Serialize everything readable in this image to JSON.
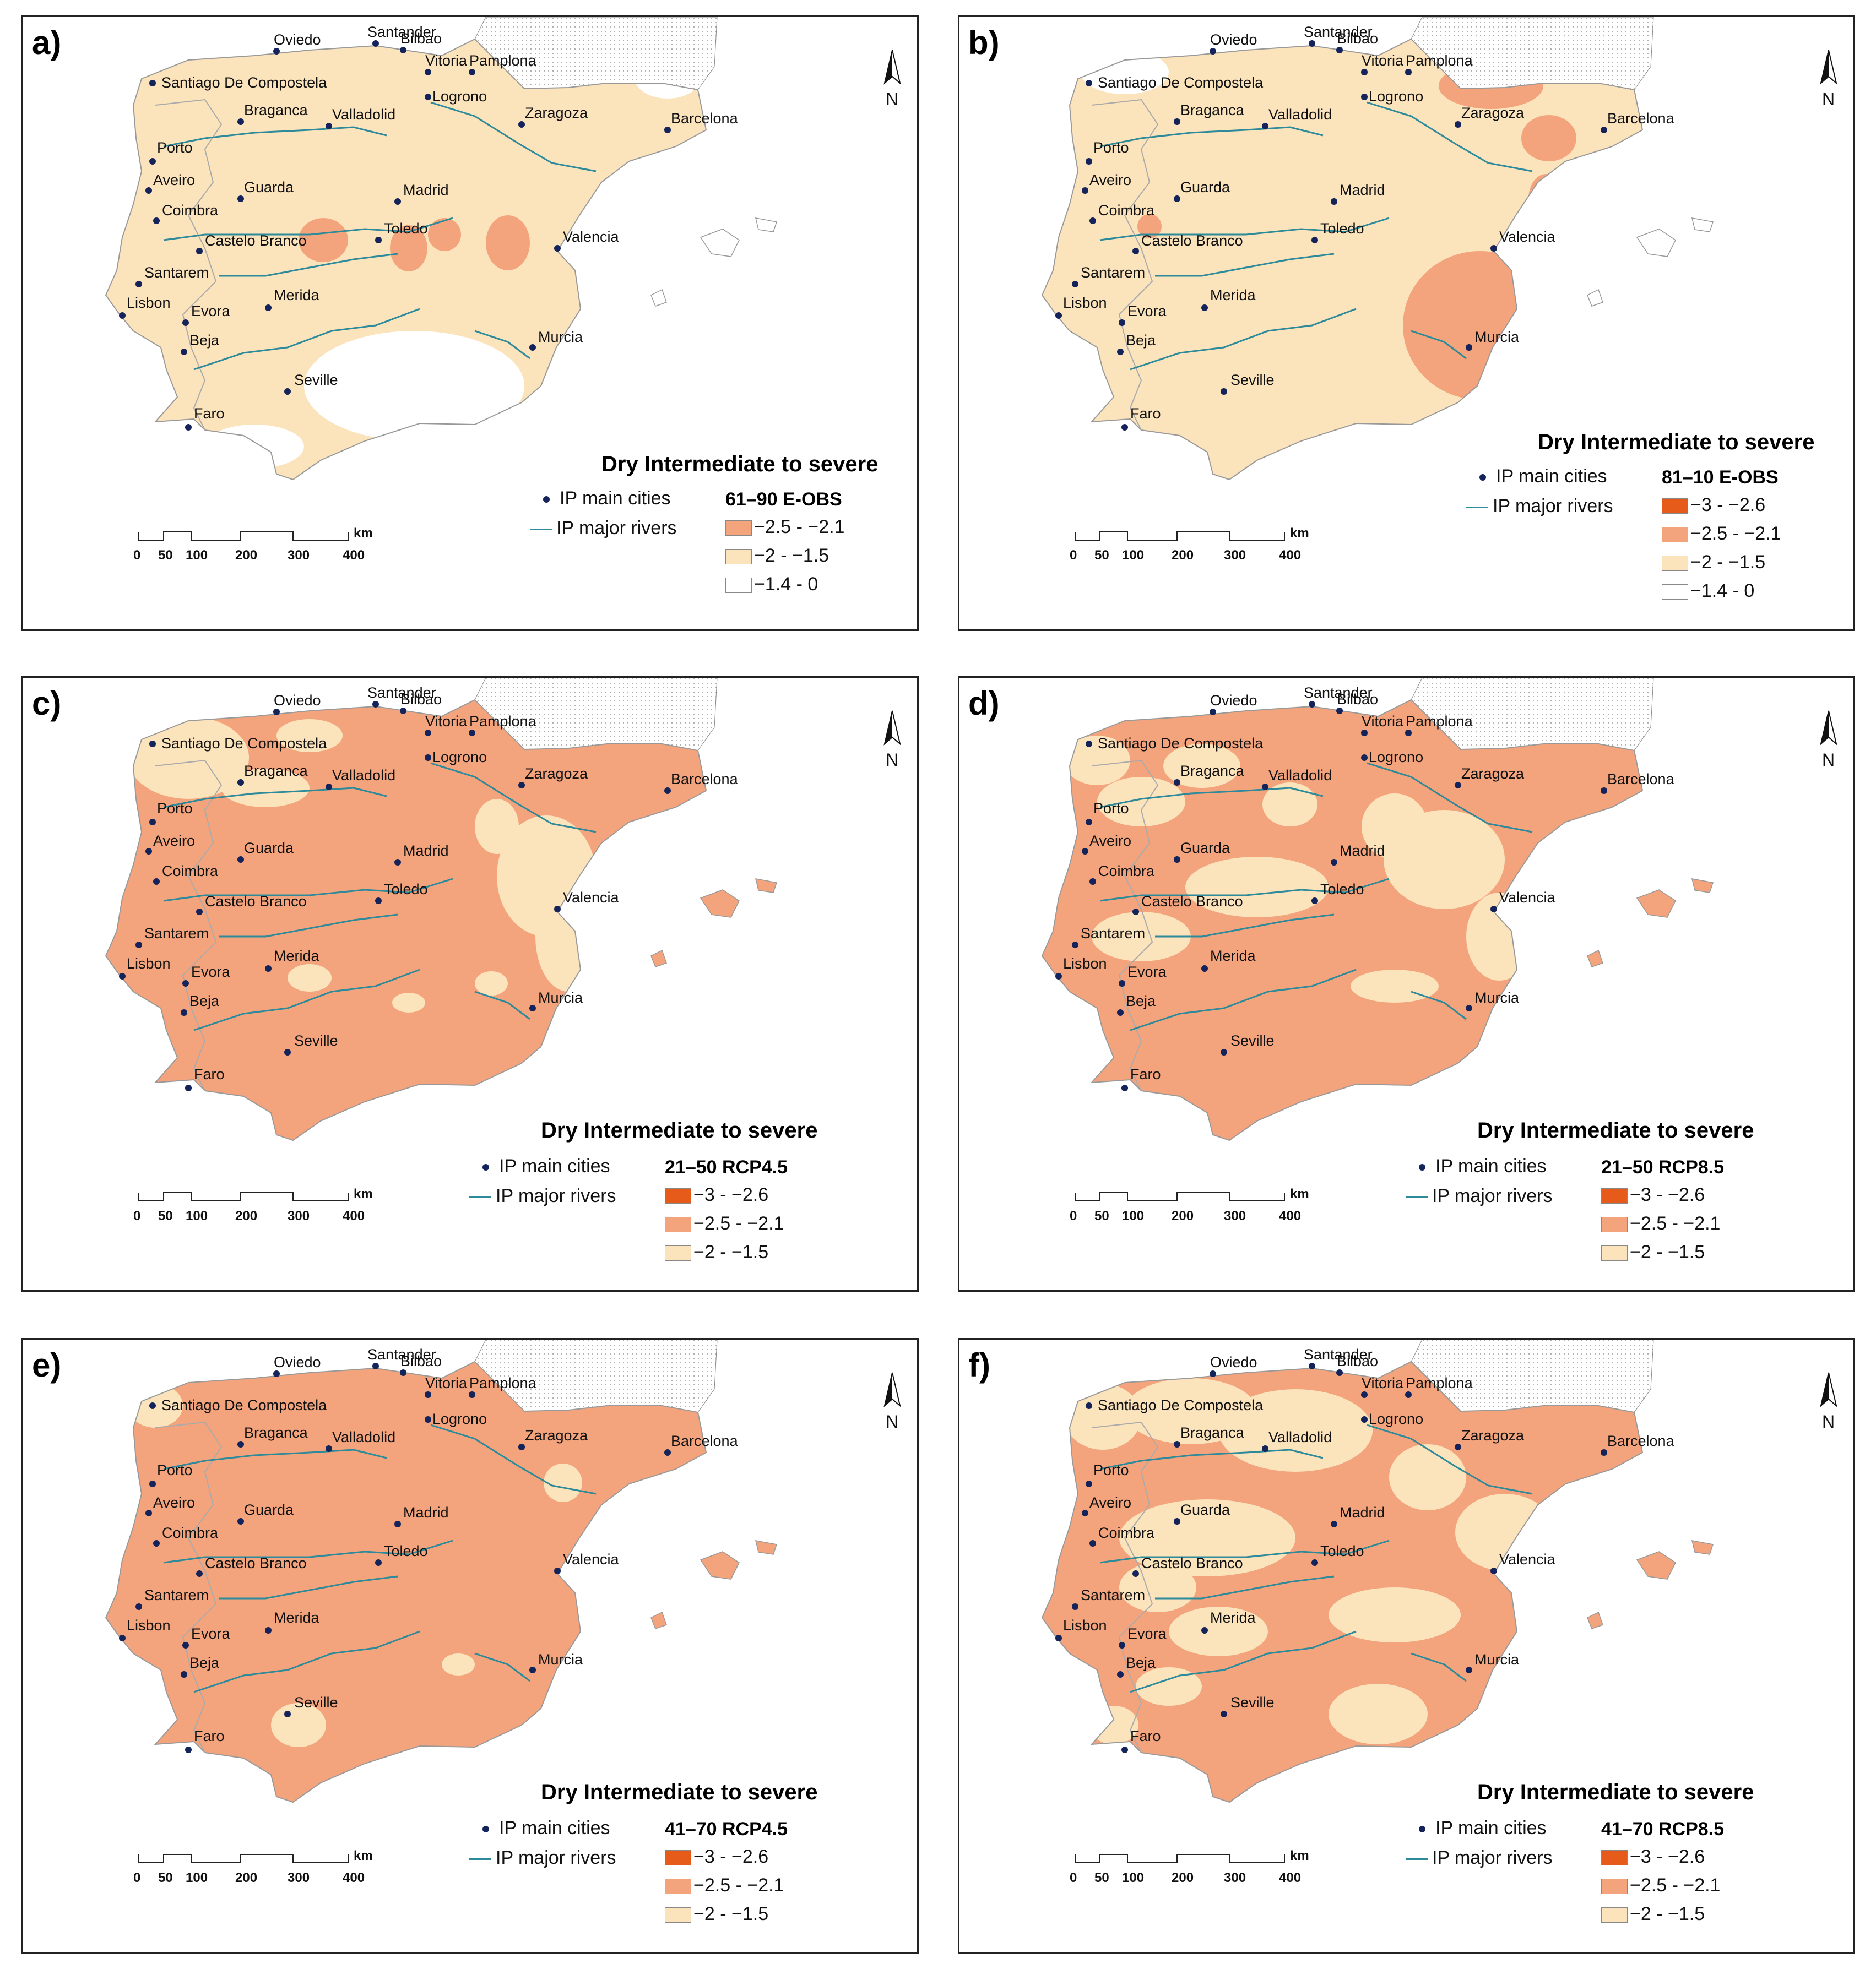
{
  "legend_title": "Dry Intermediate to severe",
  "cities_label": "IP main cities",
  "rivers_label": "IP major rivers",
  "north_label": "N",
  "scale": {
    "ticks": [
      "0",
      "50",
      "100",
      "200",
      "300",
      "400"
    ],
    "unit": "km"
  },
  "colors": {
    "class1": "#e65a1a",
    "class2": "#f4a47c",
    "class3": "#fbe3bb",
    "class4": "#ffffff",
    "river": "#2c8a9b",
    "city": "#14235a"
  },
  "cities": [
    {
      "name": "Oviedo"
    },
    {
      "name": "Santander"
    },
    {
      "name": "Bilbao"
    },
    {
      "name": "Vitoria"
    },
    {
      "name": "Pamplona"
    },
    {
      "name": "Santiago De Compostela"
    },
    {
      "name": "Logrono"
    },
    {
      "name": "Braganca"
    },
    {
      "name": "Valladolid"
    },
    {
      "name": "Zaragoza"
    },
    {
      "name": "Barcelona"
    },
    {
      "name": "Porto"
    },
    {
      "name": "Aveiro"
    },
    {
      "name": "Guarda"
    },
    {
      "name": "Madrid"
    },
    {
      "name": "Coimbra"
    },
    {
      "name": "Castelo Branco"
    },
    {
      "name": "Toledo"
    },
    {
      "name": "Valencia"
    },
    {
      "name": "Santarem"
    },
    {
      "name": "Merida"
    },
    {
      "name": "Lisbon"
    },
    {
      "name": "Evora"
    },
    {
      "name": "Beja"
    },
    {
      "name": "Murcia"
    },
    {
      "name": "Seville"
    },
    {
      "name": "Faro"
    }
  ],
  "panels": [
    {
      "label": "a)",
      "period": "61–90 E-OBS",
      "classes": [
        {
          "range": "−2.5 - −2.1",
          "color": "#f4a47c"
        },
        {
          "range": "−2 - −1.5",
          "color": "#fbe3bb"
        },
        {
          "range": "−1.4 - 0",
          "color": "#ffffff"
        }
      ]
    },
    {
      "label": "b)",
      "period": "81–10 E-OBS",
      "classes": [
        {
          "range": "−3 - −2.6",
          "color": "#e65a1a"
        },
        {
          "range": "−2.5 - −2.1",
          "color": "#f4a47c"
        },
        {
          "range": "−2 - −1.5",
          "color": "#fbe3bb"
        },
        {
          "range": "−1.4 - 0",
          "color": "#ffffff"
        }
      ]
    },
    {
      "label": "c)",
      "period": "21–50 RCP4.5",
      "classes": [
        {
          "range": "−3 - −2.6",
          "color": "#e65a1a"
        },
        {
          "range": "−2.5 - −2.1",
          "color": "#f4a47c"
        },
        {
          "range": "−2 - −1.5",
          "color": "#fbe3bb"
        }
      ]
    },
    {
      "label": "d)",
      "period": "21–50 RCP8.5",
      "classes": [
        {
          "range": "−3 - −2.6",
          "color": "#e65a1a"
        },
        {
          "range": "−2.5 - −2.1",
          "color": "#f4a47c"
        },
        {
          "range": "−2 - −1.5",
          "color": "#fbe3bb"
        }
      ]
    },
    {
      "label": "e)",
      "period": "41–70 RCP4.5",
      "classes": [
        {
          "range": "−3 - −2.6",
          "color": "#e65a1a"
        },
        {
          "range": "−2.5 - −2.1",
          "color": "#f4a47c"
        },
        {
          "range": "−2 - −1.5",
          "color": "#fbe3bb"
        }
      ]
    },
    {
      "label": "f)",
      "period": "41–70 RCP8.5",
      "classes": [
        {
          "range": "−3 - −2.6",
          "color": "#e65a1a"
        },
        {
          "range": "−2.5 - −2.1",
          "color": "#f4a47c"
        },
        {
          "range": "−2 - −1.5",
          "color": "#fbe3bb"
        }
      ]
    }
  ]
}
